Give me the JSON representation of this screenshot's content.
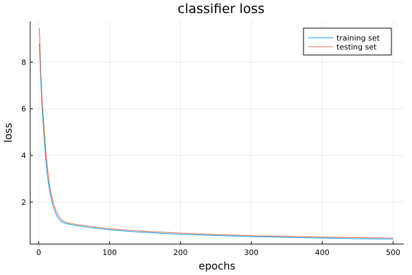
{
  "chart_data": {
    "type": "line",
    "title": "classifier loss",
    "xlabel": "epochs",
    "ylabel": "loss",
    "xlim": [
      -12,
      515
    ],
    "ylim": [
      0.2,
      9.75
    ],
    "xticks": [
      0,
      100,
      200,
      300,
      400,
      500
    ],
    "yticks": [
      2,
      4,
      6,
      8
    ],
    "grid": true,
    "legend_position": "top-right",
    "series": [
      {
        "name": "training set",
        "color": "#009AFA",
        "x": [
          1,
          3,
          5,
          8,
          10,
          12,
          15,
          18,
          20,
          25,
          30,
          35,
          40,
          50,
          60,
          80,
          100,
          125,
          150,
          200,
          250,
          300,
          350,
          400,
          450,
          500
        ],
        "y": [
          8.8,
          7.2,
          5.9,
          4.6,
          3.8,
          3.2,
          2.55,
          2.1,
          1.85,
          1.45,
          1.22,
          1.12,
          1.07,
          1.01,
          0.96,
          0.88,
          0.81,
          0.75,
          0.7,
          0.62,
          0.57,
          0.52,
          0.49,
          0.46,
          0.43,
          0.41
        ]
      },
      {
        "name": "testing set",
        "color": "#E36F47",
        "x": [
          1,
          3,
          5,
          8,
          10,
          12,
          15,
          18,
          20,
          25,
          30,
          35,
          40,
          50,
          60,
          80,
          100,
          125,
          150,
          200,
          250,
          300,
          350,
          400,
          450,
          500
        ],
        "y": [
          9.45,
          7.6,
          6.3,
          5.0,
          4.2,
          3.55,
          2.8,
          2.3,
          2.02,
          1.6,
          1.32,
          1.18,
          1.12,
          1.06,
          1.01,
          0.93,
          0.86,
          0.8,
          0.75,
          0.67,
          0.61,
          0.56,
          0.53,
          0.5,
          0.48,
          0.46
        ]
      }
    ]
  }
}
